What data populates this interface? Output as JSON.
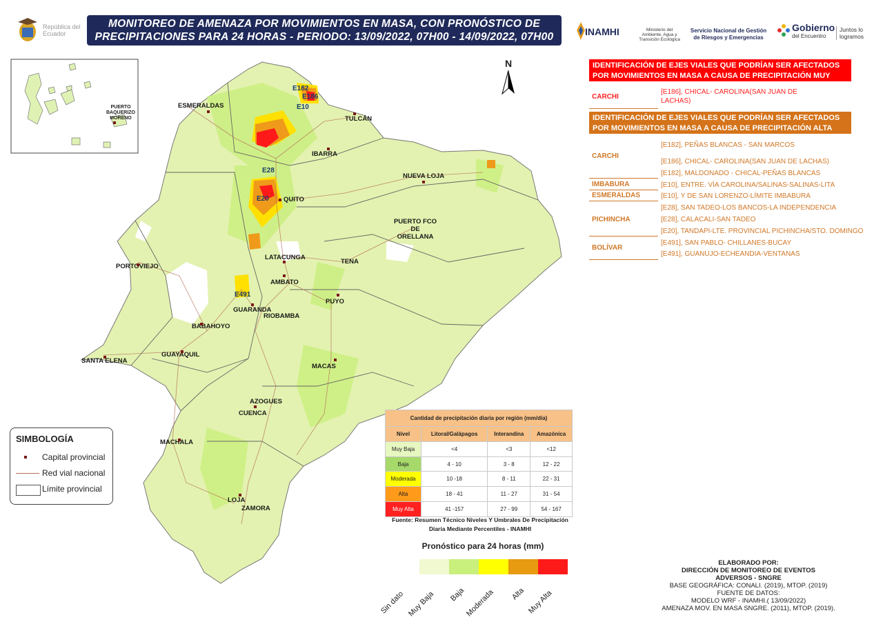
{
  "header": {
    "title_line1": "MONITOREO DE AMENAZA POR MOVIMIENTOS EN MASA, CON PRONÓSTICO DE",
    "title_line2": "PRECIPITACIONES PARA 24 HORAS - PERIODO: 13/09/2022, 07H00 - 14/09/2022, 07H00",
    "republica": "República del Ecuador",
    "inamhi": "INAMHI",
    "ministerio": "Ministerio del Ambiente, Agua y Transición Ecológica",
    "sngre": "Servicio Nacional de Gestión de Riesgos y Emergencias",
    "gobierno": "Gobierno",
    "encuentro": "del Encuentro",
    "juntos": "Juntos lo logramos"
  },
  "map": {
    "north": "N",
    "galapagos_label": "PUERTO BAQUERIZO MORENO",
    "cities": [
      {
        "name": "ESMERALDAS"
      },
      {
        "name": "TULCÁN"
      },
      {
        "name": "IBARRA"
      },
      {
        "name": "NUEVA LOJA"
      },
      {
        "name": "QUITO"
      },
      {
        "name": "PUERTO FCO DE ORELLANA"
      },
      {
        "name": "LATACUNGA"
      },
      {
        "name": "TENA"
      },
      {
        "name": "PORTOVIEJO"
      },
      {
        "name": "AMBATO"
      },
      {
        "name": "GUARANDA"
      },
      {
        "name": "RIOBAMBA"
      },
      {
        "name": "PUYO"
      },
      {
        "name": "BABAHOYO"
      },
      {
        "name": "GUAYAQUIL"
      },
      {
        "name": "SANTA ELENA"
      },
      {
        "name": "MACAS"
      },
      {
        "name": "AZOGUES"
      },
      {
        "name": "CUENCA"
      },
      {
        "name": "MACHALA"
      },
      {
        "name": "LOJA"
      },
      {
        "name": "ZAMORA"
      }
    ],
    "roads": [
      "E182",
      "E186",
      "E10",
      "E28",
      "E20",
      "E491"
    ]
  },
  "panel": {
    "very_high_header": "IDENTIFICACIÓN DE EJES VIALES QUE PODRÍAN SER AFECTADOS POR MOVIMIENTOS EN MASA A CAUSA DE  PRECIPITACIÓN MUY ALTA",
    "very_high": [
      {
        "province": "CARCHI",
        "roads": [
          "[E186], CHICAL- CAROLINA(SAN JUAN DE",
          "LACHAS)"
        ]
      }
    ],
    "high_header": "IDENTIFICACIÓN DE EJES VIALES QUE PODRÍAN SER AFECTADOS POR MOVIMIENTOS EN MASA A CAUSA DE  PRECIPITACIÓN ALTA",
    "high": [
      {
        "province": "CARCHI",
        "roads": [
          "[E182], PEÑAS BLANCAS - SAN MARCOS",
          "[E186], CHICAL- CAROLINA(SAN JUAN DE LACHAS)",
          "[E182], MALDONADO - CHICAL-PEÑAS BLANCAS"
        ]
      },
      {
        "province": "IMBABURA",
        "roads": [
          "[E10], ENTRE. VÍA CAROLINA/SALINAS-SALINAS-LITA"
        ]
      },
      {
        "province": "ESMERALDAS",
        "roads": [
          "[E10], Y DE SAN LORENZO-LÍMITE IMBABURA"
        ]
      },
      {
        "province": "PICHINCHA",
        "roads": [
          "[E28], SAN TADEO-LOS BANCOS-LA INDEPENDENCIA",
          "[E28], CALACALI-SAN TADEO",
          "[E20], TANDAPI-LTE. PROVINCIAL PICHINCHA/STO. DOMINGO"
        ]
      },
      {
        "province": "BOLÍVAR",
        "roads": [
          "[E491], SAN PABLO- CHILLANES-BUCAY",
          "[E491], GUANUJO-ECHEANDIA-VENTANAS"
        ]
      }
    ]
  },
  "legend": {
    "title": "SIMBOLOGÍA",
    "capital": "Capital provincial",
    "road": "Red vial nacional",
    "limit": "Límite provincial"
  },
  "table": {
    "title": "Cantidad de precipitación diaria por región (mm/día)",
    "columns": [
      "Nivel",
      "Litoral/Galápagos",
      "Interandina",
      "Amazónica"
    ],
    "rows": [
      {
        "level": "Muy Baja",
        "color": "#e6f7c0",
        "vals": [
          "<4",
          "<3",
          "<12"
        ]
      },
      {
        "level": "Baja",
        "color": "#a6d96a",
        "vals": [
          "4 - 10",
          "3 - 8",
          "12 - 22"
        ]
      },
      {
        "level": "Moderada",
        "color": "#ffff00",
        "vals": [
          "10 -18",
          "8 - 11",
          "22 - 31"
        ]
      },
      {
        "level": "Alta",
        "color": "#ff9a1a",
        "vals": [
          "18 - 41",
          "11 - 27",
          "31 - 54"
        ]
      },
      {
        "level": "Muy Alta",
        "color": "#ff2020",
        "vals": [
          "41 -157",
          "27 - 99",
          "54 - 167"
        ]
      }
    ],
    "source": "Fuente: Resumen Técnico Niveles Y Umbrales De Precipitación Diaria Mediante Percentiles - INAMHI"
  },
  "forecast": {
    "title": "Pronóstico para 24 horas (mm)",
    "labels": [
      "Sin dato",
      "Muy Baja",
      "Baja",
      "Moderada",
      "Alta",
      "Muy Alta"
    ],
    "colors": [
      "#f0f9cf",
      "#c9ef7d",
      "#ffff00",
      "#e89a10",
      "#ff1a1a"
    ]
  },
  "credits": {
    "l1": "ELABORADO POR:",
    "l2": "DIRECCIÓN DE MONITOREO DE EVENTOS",
    "l3": "ADVERSOS - SNGRE",
    "l4": "BASE GEOGRÁFICA: CONALI. (2019), MTOP. (2019)",
    "l5": "FUENTE DE DATOS:",
    "l6": "MODELO WRF - INAMHI.( 13/09/2022)",
    "l7": "AMENAZA MOV. EN MASA SNGRE. (2011), MTOP. (2019)."
  }
}
